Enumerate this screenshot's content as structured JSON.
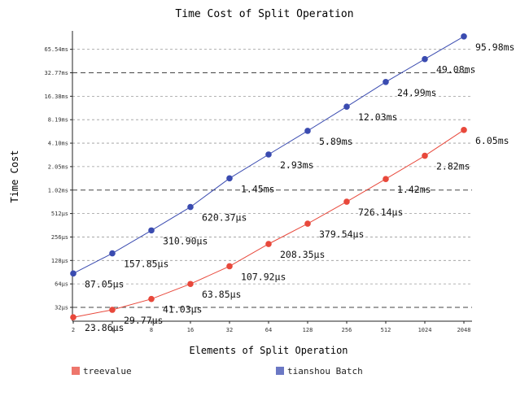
{
  "chart_data": {
    "type": "line",
    "title": "Time Cost of Split Operation",
    "xlabel": "Elements of Split Operation",
    "ylabel": "Time Cost",
    "x_scale": "log2",
    "y_scale": "log2",
    "x": [
      2,
      4,
      8,
      16,
      32,
      64,
      128,
      256,
      512,
      1024,
      2048
    ],
    "x_tick_labels": [
      "2",
      "4",
      "8",
      "16",
      "32",
      "64",
      "128",
      "256",
      "512",
      "1024",
      "2048"
    ],
    "y_ticks_us": [
      32,
      64,
      128,
      256,
      512,
      1024,
      2048,
      4096,
      8192,
      16384,
      32768,
      65536
    ],
    "y_tick_labels": [
      "32µs",
      "64µs",
      "128µs",
      "256µs",
      "512µs",
      "1.02ms",
      "2.05ms",
      "4.10ms",
      "8.19ms",
      "16.38ms",
      "32.77ms",
      "65.54ms"
    ],
    "grid": true,
    "legend_position": "bottom",
    "series": [
      {
        "name": "treevalue",
        "color": "#e8483b",
        "values_us": [
          23.86,
          29.77,
          41.03,
          63.85,
          107.92,
          208.35,
          379.54,
          726.14,
          1420,
          2820,
          6050
        ],
        "labels": [
          "23.86µs",
          "29.77µs",
          "41.03µs",
          "63.85µs",
          "107.92µs",
          "208.35µs",
          "379.54µs",
          "726.14µs",
          "1.42ms",
          "2.82ms",
          "6.05ms"
        ]
      },
      {
        "name": "tianshou Batch",
        "color": "#3a4bb0",
        "values_us": [
          87.05,
          157.85,
          310.9,
          620.37,
          1450,
          2930,
          5890,
          12030,
          24990,
          49080,
          95980
        ],
        "labels": [
          "87.05µs",
          "157.85µs",
          "310.90µs",
          "620.37µs",
          "1.45ms",
          "2.93ms",
          "5.89ms",
          "12.03ms",
          "24.99ms",
          "49.08ms",
          "95.98ms"
        ]
      }
    ]
  }
}
